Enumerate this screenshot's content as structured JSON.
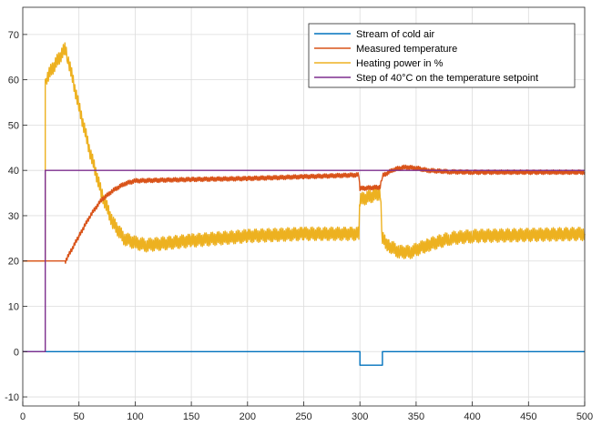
{
  "chart_data": {
    "type": "line",
    "title": "",
    "xlabel": "",
    "ylabel": "",
    "xlim": [
      0,
      500
    ],
    "ylim": [
      -12,
      76
    ],
    "xticks": [
      0,
      50,
      100,
      150,
      200,
      250,
      300,
      350,
      400,
      450,
      500
    ],
    "yticks": [
      -10,
      0,
      10,
      20,
      30,
      40,
      50,
      60,
      70
    ],
    "grid": true,
    "legend_position": "top-right",
    "series": [
      {
        "name": "Stream of cold air",
        "color": "#0072BD",
        "x": [
          0,
          300,
          300,
          320,
          320,
          500
        ],
        "y": [
          0,
          0,
          -3,
          -3,
          0,
          0
        ]
      },
      {
        "name": "Measured temperature",
        "color": "#D95319",
        "noise": 0.5,
        "x": [
          0,
          38,
          50,
          60,
          70,
          80,
          90,
          100,
          150,
          200,
          250,
          299,
          300,
          318,
          320,
          330,
          340,
          350,
          360,
          380,
          400,
          500
        ],
        "y": [
          20,
          20,
          25.5,
          30,
          33.5,
          35.5,
          37,
          37.7,
          38,
          38.2,
          38.6,
          39,
          36,
          36.3,
          38.8,
          40.2,
          40.7,
          40.5,
          40,
          39.7,
          39.6,
          39.6
        ]
      },
      {
        "name": "Heating power in %",
        "color": "#EDB120",
        "noise": 1.5,
        "x": [
          0,
          20,
          20,
          38,
          40,
          50,
          60,
          70,
          80,
          90,
          100,
          110,
          150,
          200,
          250,
          299,
          300,
          318,
          320,
          325,
          335,
          345,
          360,
          380,
          400,
          500
        ],
        "y": [
          20,
          20,
          60,
          67,
          65,
          54,
          44,
          35,
          28.5,
          25,
          24,
          23.5,
          24.5,
          25.5,
          26,
          26,
          33.5,
          35,
          25,
          23.5,
          22,
          22,
          23.5,
          25,
          25.5,
          26
        ]
      },
      {
        "name": "Step of 40°C on the temperature setpoint",
        "color": "#7E2F8E",
        "x": [
          0,
          20,
          20,
          500
        ],
        "y": [
          0,
          0,
          40,
          40
        ]
      }
    ]
  }
}
